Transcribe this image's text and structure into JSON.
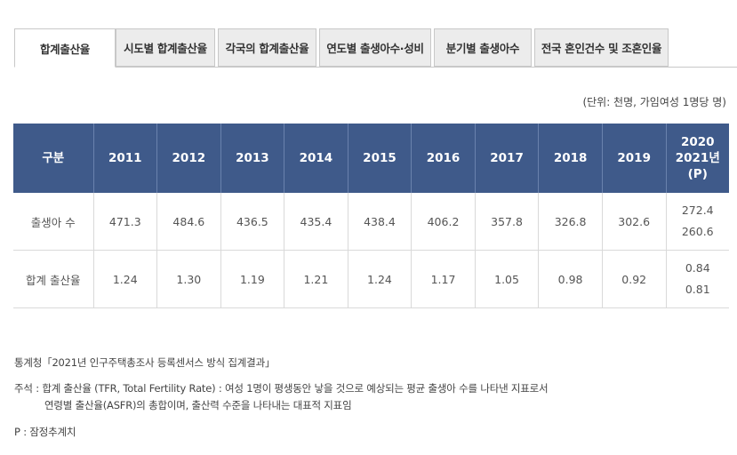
{
  "tabs": [
    {
      "label": "합계출산율",
      "active": true
    },
    {
      "label": "시도별 합계출산율",
      "active": false
    },
    {
      "label": "각국의 합계출산율",
      "active": false
    },
    {
      "label": "연도별 출생아수·성비",
      "active": false
    },
    {
      "label": "분기별 출생아수",
      "active": false
    },
    {
      "label": "전국 혼인건수 및 조혼인율",
      "active": false
    }
  ],
  "unit_note": "(단위: 천명, 가임여성 1명당 명)",
  "table": {
    "header_first": "구분",
    "years": [
      "2011",
      "2012",
      "2013",
      "2014",
      "2015",
      "2016",
      "2017",
      "2018",
      "2019"
    ],
    "last_header": [
      "2020",
      "2021년",
      "(P)"
    ],
    "rows": [
      {
        "label": "출생아 수",
        "values": [
          "471.3",
          "484.6",
          "436.5",
          "435.4",
          "438.4",
          "406.2",
          "357.8",
          "326.8",
          "302.6"
        ],
        "last": [
          "272.4",
          "260.6"
        ]
      },
      {
        "label": "합계 출산율",
        "values": [
          "1.24",
          "1.30",
          "1.19",
          "1.21",
          "1.24",
          "1.17",
          "1.05",
          "0.98",
          "0.92"
        ],
        "last": [
          "0.84",
          "0.81"
        ]
      }
    ]
  },
  "source": "통계청「2021년 인구주택총조사 등록센서스 방식 집계결과」",
  "note_line1": "주석 : 합계 출산율 (TFR, Total Fertility Rate) : 여성 1명이 평생동안 낳을 것으로 예상되는 평균 출생아 수를 나타낸 지표로서",
  "note_line2": "연령별 출산율(ASFR)의 총합이며, 출산력 수준을 나타내는 대표적 지표임",
  "p_note": "P : 잠정추계치"
}
